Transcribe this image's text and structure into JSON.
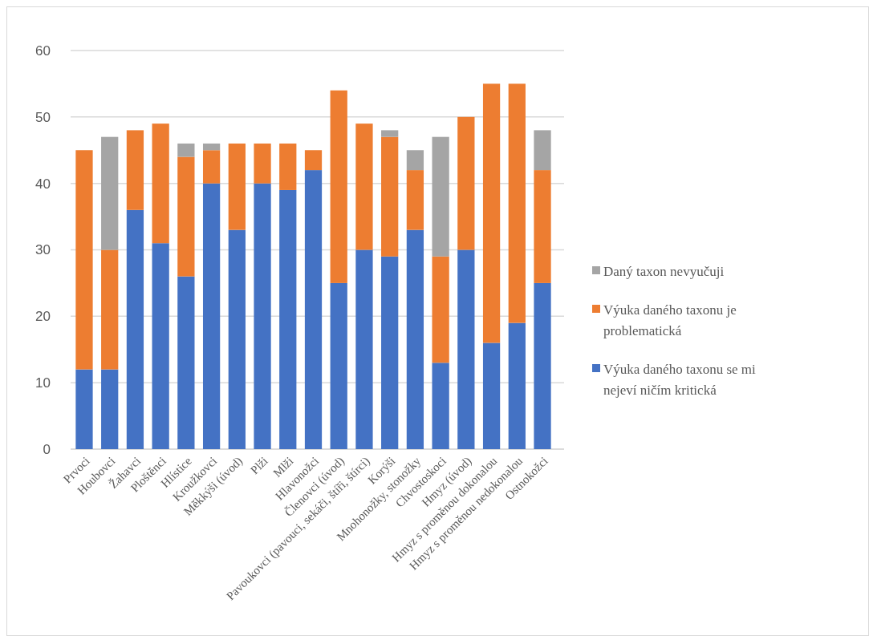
{
  "chart_data": {
    "type": "bar",
    "stacked": true,
    "categories": [
      "Prvoci",
      "Houbovci",
      "Žahavci",
      "Ploštěnci",
      "Hlístice",
      "Kroužkovci",
      "Měkkýši (úvod)",
      "Plži",
      "Mlži",
      "Hlavonožci",
      "Členovci (úvod)",
      "Pavoukovci (pavouci, sekáči, štíři, štírci)",
      "Korýši",
      "Mnohonožky, stonožky",
      "Chvostoskoci",
      "Hmyz (úvod)",
      "Hmyz s proměnou dokonalou",
      "Hmyz s proměnou nedokonalou",
      "Ostnokožci"
    ],
    "series": [
      {
        "name": "Výuka daného taxonu se mi nejeví ničím kritická",
        "color": "#4472c4",
        "values": [
          12,
          12,
          36,
          31,
          26,
          40,
          33,
          40,
          39,
          42,
          25,
          30,
          29,
          33,
          13,
          30,
          16,
          19,
          25
        ]
      },
      {
        "name": "Výuka daného taxonu je problematická",
        "color": "#ed7d31",
        "values": [
          33,
          18,
          12,
          18,
          18,
          5,
          13,
          6,
          7,
          3,
          29,
          19,
          18,
          9,
          16,
          20,
          39,
          36,
          17
        ]
      },
      {
        "name": "Daný taxon nevyučuji",
        "color": "#a5a5a5",
        "values": [
          null,
          17,
          null,
          null,
          2,
          1,
          null,
          null,
          null,
          null,
          null,
          null,
          1,
          3,
          18,
          null,
          null,
          null,
          6
        ]
      }
    ],
    "ylim": [
      0,
      60
    ],
    "yticks": [
      0,
      10,
      20,
      30,
      40,
      50,
      60
    ],
    "grid": "y",
    "legend": "right"
  }
}
